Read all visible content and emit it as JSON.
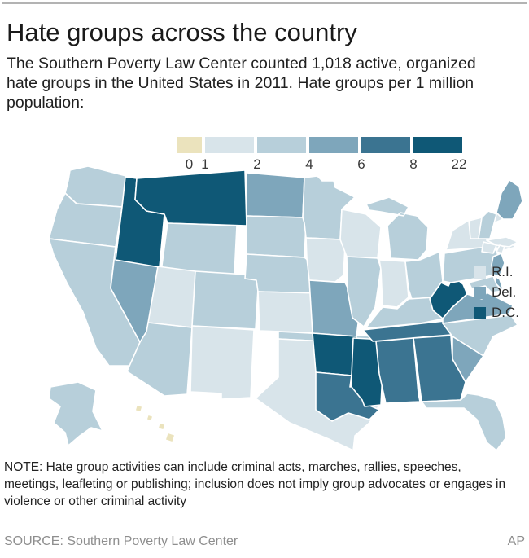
{
  "header": {
    "title": "Hate groups across the country",
    "subtitle": "The Southern Poverty Law Center counted 1,018 active, organized hate groups in the United States in 2011. Hate groups per 1 million population:"
  },
  "note": "NOTE: Hate group activities can include criminal acts, marches, rallies, speeches, meetings, leafleting or publishing; inclusion does not imply group advocates or engages in violence or other criminal activity",
  "source": {
    "label": "SOURCE: Southern Poverty Law Center",
    "credit": "AP"
  },
  "side_legend": [
    {
      "label": "R.I.",
      "bin": 1
    },
    {
      "label": "Del.",
      "bin": 3
    },
    {
      "label": "D.C.",
      "bin": 5
    }
  ],
  "chart_data": {
    "type": "heatmap",
    "subtype": "us_choropleth",
    "title": "Hate groups per 1 million population, 2011",
    "total_groups_counted": "1,018",
    "year": "2011",
    "legend_boundaries": [
      "0",
      "1",
      "2",
      "4",
      "6",
      "8",
      "22"
    ],
    "bins": [
      "0-1",
      "1-2",
      "2-4",
      "4-6",
      "6-8",
      "8-22"
    ],
    "palette": [
      "#ebe3bd",
      "#d8e4ea",
      "#b7cfda",
      "#7ea6bb",
      "#3b7491",
      "#0f5876"
    ],
    "legend_position": "top-center; small-state callouts right (R.I., Del., D.C.)",
    "state_bins": {
      "AL": 4,
      "AK": 2,
      "AZ": 2,
      "AR": 5,
      "CA": 2,
      "CO": 2,
      "CT": 1,
      "DE": 3,
      "DC": 5,
      "FL": 2,
      "GA": 4,
      "HI": 0,
      "ID": 5,
      "IL": 2,
      "IN": 1,
      "IA": 1,
      "KS": 1,
      "KY": 2,
      "LA": 4,
      "ME": 3,
      "MD": 2,
      "MA": 1,
      "MI": 2,
      "MN": 2,
      "MS": 5,
      "MO": 3,
      "MT": 5,
      "NE": 2,
      "NV": 3,
      "NH": 2,
      "NJ": 3,
      "NM": 1,
      "NY": 1,
      "NC": 2,
      "ND": 3,
      "OH": 2,
      "OK": 2,
      "OR": 2,
      "PA": 2,
      "RI": 1,
      "SC": 3,
      "SD": 2,
      "TN": 4,
      "TX": 1,
      "UT": 1,
      "VT": 1,
      "VA": 3,
      "WA": 2,
      "WV": 5,
      "WI": 1,
      "WY": 2
    }
  }
}
